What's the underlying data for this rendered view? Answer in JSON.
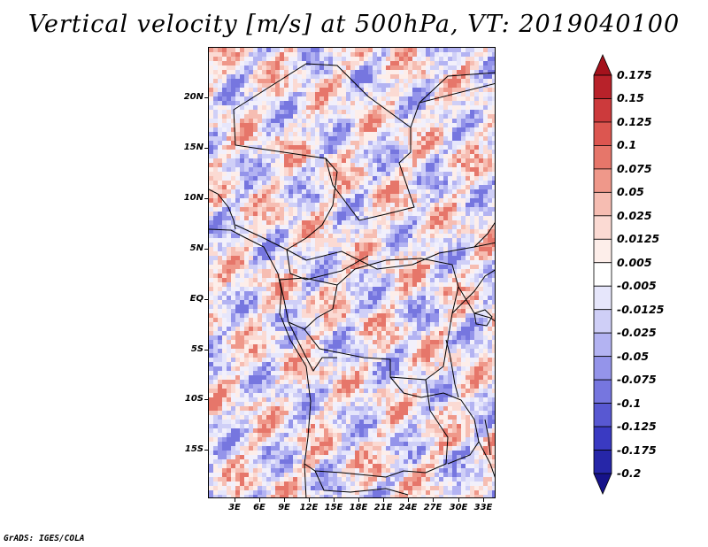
{
  "title": "Vertical velocity [m/s] at 500hPa, VT: 2019040100",
  "credit": "GrADS: IGES/COLA",
  "lat_labels": [
    "20N",
    "15N",
    "10N",
    "5N",
    "EQ",
    "5S",
    "10S",
    "15S"
  ],
  "lon_labels": [
    "3E",
    "6E",
    "9E",
    "12E",
    "15E",
    "18E",
    "21E",
    "24E",
    "27E",
    "30E",
    "33E"
  ],
  "colorbar": {
    "labels": [
      "0.175",
      "0.15",
      "0.125",
      "0.1",
      "0.075",
      "0.05",
      "0.025",
      "0.0125",
      "0.005",
      "-0.005",
      "-0.0125",
      "-0.025",
      "-0.05",
      "-0.075",
      "-0.1",
      "-0.125",
      "-0.175",
      "-0.2"
    ],
    "colors": [
      "#a4121c",
      "#b8222a",
      "#cc3a3c",
      "#dc5650",
      "#e6766a",
      "#ef988a",
      "#f6bdb2",
      "#fbdad3",
      "#fdeeea",
      "#ffffff",
      "#e6e6fb",
      "#cfcff7",
      "#b3b3f2",
      "#9494ea",
      "#7676df",
      "#5858d2",
      "#3a3ac2",
      "#2626a8",
      "#16128a"
    ]
  }
}
